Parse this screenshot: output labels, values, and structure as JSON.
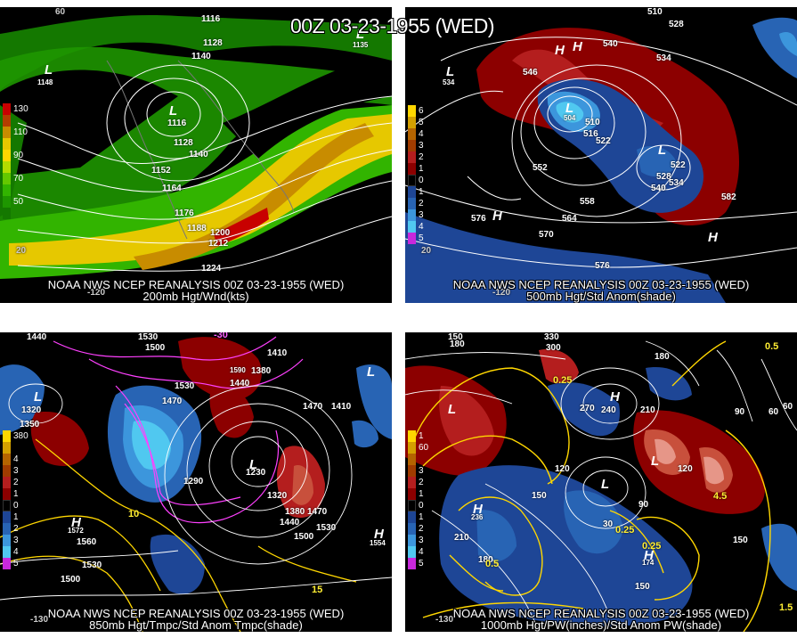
{
  "title": "00Z 03-23-1955 (WED)",
  "panels": [
    {
      "caption1": "NOAA NWS NCEP REANALYSIS 00Z 03-23-1955 (WED)",
      "caption2": "200mb Hgt/Wnd(kts)",
      "legend": [
        {
          "label": "130",
          "color": "#c80000"
        },
        {
          "label": "",
          "color": "#b43c00"
        },
        {
          "label": "110",
          "color": "#c88c00"
        },
        {
          "label": "",
          "color": "#e6c800"
        },
        {
          "label": "90",
          "color": "#ffd700"
        },
        {
          "label": "",
          "color": "#b4dc00"
        },
        {
          "label": "70",
          "color": "#64c800"
        },
        {
          "label": "",
          "color": "#32b400"
        },
        {
          "label": "50",
          "color": "#1e9600"
        },
        {
          "label": "",
          "color": "#147800"
        },
        {
          "label": "30",
          "color": "#0a5a00"
        }
      ],
      "contour_labels": [
        "1116",
        "1128",
        "1140",
        "1116",
        "1128",
        "1140",
        "1152",
        "1164",
        "1176",
        "1188",
        "1200",
        "1212",
        "1224",
        "1135",
        "1148"
      ],
      "grid_labels": [
        "60",
        "20",
        "-120"
      ]
    },
    {
      "caption1": "NOAA NWS NCEP REANALYSIS 00Z 03-23-1955 (WED)",
      "caption2": "500mb Hgt/Std Anom(shade)",
      "legend": [
        {
          "label": "6",
          "color": "#ffd700"
        },
        {
          "label": "5",
          "color": "#d4a000"
        },
        {
          "label": "4",
          "color": "#b46400"
        },
        {
          "label": "3",
          "color": "#a03c00"
        },
        {
          "label": "2",
          "color": "#b41e1e"
        },
        {
          "label": "1",
          "color": "#8c0000"
        },
        {
          "label": "0",
          "color": "#000000"
        },
        {
          "label": "1",
          "color": "#1e4696"
        },
        {
          "label": "2",
          "color": "#2864b4"
        },
        {
          "label": "3",
          "color": "#3c96dc"
        },
        {
          "label": "4",
          "color": "#50c8f0"
        },
        {
          "label": "5",
          "color": "#c828dc"
        }
      ],
      "contour_labels": [
        "510",
        "528",
        "540",
        "546",
        "534",
        "504",
        "510",
        "516",
        "522",
        "552",
        "558",
        "564",
        "570",
        "576",
        "582",
        "528",
        "522",
        "534",
        "540",
        "576",
        "534"
      ],
      "grid_labels": [
        "20",
        "-120"
      ]
    },
    {
      "caption1": "NOAA NWS NCEP REANALYSIS 00Z 03-23-1955 (WED)",
      "caption2": "850mb Hgt/Tmpc/Std Anom Tmpc(shade)",
      "legend": [
        {
          "label": "380",
          "color": "#ffd700"
        },
        {
          "label": "",
          "color": "#d4a000"
        },
        {
          "label": "4",
          "color": "#b46400"
        },
        {
          "label": "3",
          "color": "#a03c00"
        },
        {
          "label": "2",
          "color": "#b41e1e"
        },
        {
          "label": "1",
          "color": "#8c0000"
        },
        {
          "label": "0",
          "color": "#000000"
        },
        {
          "label": "1",
          "color": "#1e4696"
        },
        {
          "label": "2",
          "color": "#2864b4"
        },
        {
          "label": "3",
          "color": "#3c96dc"
        },
        {
          "label": "4",
          "color": "#50c8f0"
        },
        {
          "label": "5",
          "color": "#c828dc"
        }
      ],
      "contour_labels": [
        "1440",
        "1530",
        "1500",
        "1410",
        "1380",
        "1320",
        "1350",
        "1470",
        "1530",
        "1440",
        "1470",
        "1410",
        "1290",
        "1230",
        "1320",
        "1380",
        "1470",
        "1530",
        "1560",
        "1500",
        "1530",
        "1500",
        "1440",
        "1590",
        "1554",
        "1572"
      ],
      "temp_labels": [
        "-30",
        "10",
        "15",
        "5"
      ],
      "grid_labels": [
        "-130"
      ]
    },
    {
      "caption1": "NOAA NWS NCEP REANALYSIS 00Z 03-23-1955 (WED)",
      "caption2": "1000mb Hgt/PW(inches)/Std Anom PW(shade)",
      "legend": [
        {
          "label": "1",
          "color": "#ffd700"
        },
        {
          "label": "60",
          "color": "#d4a000"
        },
        {
          "label": "",
          "color": "#b46400"
        },
        {
          "label": "3",
          "color": "#a03c00"
        },
        {
          "label": "2",
          "color": "#b41e1e"
        },
        {
          "label": "1",
          "color": "#8c0000"
        },
        {
          "label": "0",
          "color": "#000000"
        },
        {
          "label": "1",
          "color": "#1e4696"
        },
        {
          "label": "2",
          "color": "#2864b4"
        },
        {
          "label": "3",
          "color": "#3c96dc"
        },
        {
          "label": "4",
          "color": "#50c8f0"
        },
        {
          "label": "5",
          "color": "#c828dc"
        }
      ],
      "contour_labels": [
        "150",
        "180",
        "330",
        "300",
        "270",
        "240",
        "210",
        "180",
        "120",
        "150",
        "90",
        "60",
        "30",
        "60",
        "90",
        "120",
        "150",
        "180",
        "210",
        "236",
        "150",
        "174"
      ],
      "pw_labels": [
        "0.5",
        "0.25",
        "0.25",
        "0.5",
        "1.5",
        "4.5",
        "0.25"
      ],
      "grid_labels": [
        "-130"
      ]
    }
  ]
}
